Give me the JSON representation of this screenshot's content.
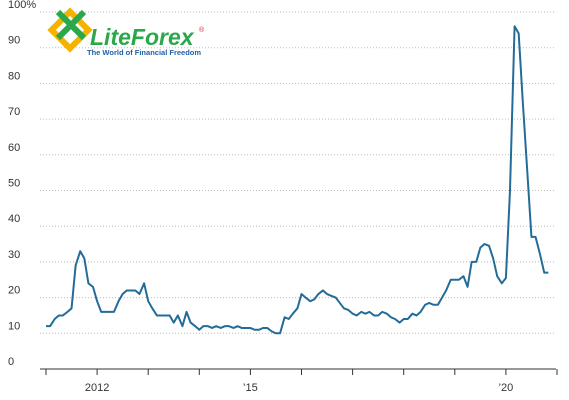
{
  "logo": {
    "name": "LiteForex",
    "registered": "®",
    "tagline": "The World of Financial Freedom"
  },
  "chart_data": {
    "type": "line",
    "x": [
      2011.0,
      2011.08,
      2011.17,
      2011.25,
      2011.33,
      2011.42,
      2011.5,
      2011.58,
      2011.67,
      2011.75,
      2011.83,
      2011.92,
      2012.0,
      2012.08,
      2012.17,
      2012.25,
      2012.33,
      2012.42,
      2012.5,
      2012.58,
      2012.67,
      2012.75,
      2012.83,
      2012.92,
      2013.0,
      2013.08,
      2013.17,
      2013.25,
      2013.33,
      2013.42,
      2013.5,
      2013.58,
      2013.67,
      2013.75,
      2013.83,
      2013.92,
      2014.0,
      2014.08,
      2014.17,
      2014.25,
      2014.33,
      2014.42,
      2014.5,
      2014.58,
      2014.67,
      2014.75,
      2014.83,
      2014.92,
      2015.0,
      2015.08,
      2015.17,
      2015.25,
      2015.33,
      2015.42,
      2015.5,
      2015.58,
      2015.67,
      2015.75,
      2015.83,
      2015.92,
      2016.0,
      2016.08,
      2016.17,
      2016.25,
      2016.33,
      2016.42,
      2016.5,
      2016.58,
      2016.67,
      2016.75,
      2016.83,
      2016.92,
      2017.0,
      2017.08,
      2017.17,
      2017.25,
      2017.33,
      2017.42,
      2017.5,
      2017.58,
      2017.67,
      2017.75,
      2017.83,
      2017.92,
      2018.0,
      2018.08,
      2018.17,
      2018.25,
      2018.33,
      2018.42,
      2018.5,
      2018.58,
      2018.67,
      2018.75,
      2018.83,
      2018.92,
      2019.0,
      2019.08,
      2019.17,
      2019.25,
      2019.33,
      2019.42,
      2019.5,
      2019.58,
      2019.67,
      2019.75,
      2019.83,
      2019.92,
      2020.0,
      2020.08,
      2020.17,
      2020.25,
      2020.33,
      2020.42,
      2020.5,
      2020.58,
      2020.67,
      2020.75,
      2020.83
    ],
    "series": [
      {
        "color": "#246c98",
        "values": [
          12,
          12,
          14,
          15,
          15,
          16,
          17,
          29,
          33,
          31,
          24,
          23,
          19,
          16,
          16,
          16,
          16,
          19,
          21,
          22,
          22,
          22,
          21,
          24,
          19,
          17,
          15,
          15,
          15,
          15,
          13,
          15,
          12,
          16,
          13,
          12,
          11,
          12,
          12,
          11.5,
          12,
          11.5,
          12,
          12,
          11.5,
          12,
          11.5,
          11.5,
          11.5,
          11,
          11,
          11.5,
          11.5,
          10.5,
          10,
          10,
          14.5,
          14,
          15.5,
          17,
          21,
          20,
          19,
          19.5,
          21,
          22,
          21,
          20.5,
          20,
          18.5,
          17,
          16.5,
          15.5,
          15,
          16,
          15.5,
          16,
          15,
          15,
          16,
          15.5,
          14.5,
          14,
          13,
          14,
          14,
          15.5,
          15,
          16,
          18,
          18.5,
          18,
          18,
          20,
          22,
          25,
          25,
          25,
          26,
          23,
          30,
          30,
          34,
          35,
          34.5,
          31,
          26,
          24,
          25.5,
          50,
          96,
          94,
          75,
          55,
          37,
          37,
          32,
          27,
          27
        ]
      }
    ],
    "xlim": [
      2011,
      2021
    ],
    "xticks": [
      {
        "value": 2012,
        "label": "2012"
      },
      {
        "value": 2015,
        "label": "’15"
      },
      {
        "value": 2020,
        "label": "’20"
      }
    ],
    "xminorticks": [
      2011,
      2013,
      2014,
      2016,
      2017,
      2018,
      2019,
      2021
    ],
    "ylim": [
      0,
      100
    ],
    "yticks": [
      0,
      10,
      20,
      30,
      40,
      50,
      60,
      70,
      80,
      90,
      {
        "value": 100,
        "label": "100%"
      }
    ],
    "grid": true
  }
}
